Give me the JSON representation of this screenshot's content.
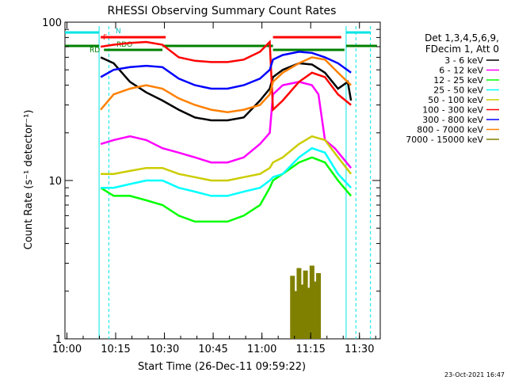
{
  "chart_data": {
    "type": "line",
    "title": "RHESSI Observing Summary Count Rates",
    "xlabel": "Start Time (26-Dec-11 09:59:22)",
    "ylabel": "Count Rate (s⁻¹ detector⁻¹)",
    "yscale": "log",
    "ylim": [
      1,
      100
    ],
    "xlim_minutes": [
      0,
      97
    ],
    "x_ticks": [
      "10:00",
      "10:15",
      "10:30",
      "10:45",
      "11:00",
      "11:15",
      "11:30"
    ],
    "y_ticks": [
      "1",
      "10",
      "100"
    ],
    "legend_header": [
      "Det 1,3,4,5,6,9,",
      "FDecim 1, Att 0"
    ],
    "legend_placement": "right",
    "footer": "23-Oct-2021 16:47",
    "flag_labels": {
      "n": "N",
      "f": "F",
      "rd": "RD",
      "rdo": "RDO"
    },
    "series": [
      {
        "name": "3 - 6 keV",
        "color": "#000000",
        "values": [
          [
            11,
            60
          ],
          [
            15,
            55
          ],
          [
            20,
            42
          ],
          [
            25,
            36
          ],
          [
            30,
            32
          ],
          [
            35,
            28
          ],
          [
            40,
            25
          ],
          [
            45,
            24
          ],
          [
            50,
            24
          ],
          [
            55,
            25
          ],
          [
            60,
            32
          ],
          [
            63,
            38
          ],
          [
            64,
            45
          ],
          [
            67,
            50
          ],
          [
            72,
            55
          ],
          [
            76,
            54
          ],
          [
            80,
            48
          ],
          [
            84,
            38
          ],
          [
            87,
            42
          ],
          [
            88,
            32
          ]
        ]
      },
      {
        "name": "6 - 12 keV",
        "color": "#ff00ff",
        "values": [
          [
            11,
            17
          ],
          [
            15,
            18
          ],
          [
            20,
            19
          ],
          [
            25,
            18
          ],
          [
            30,
            16
          ],
          [
            35,
            15
          ],
          [
            40,
            14
          ],
          [
            45,
            13
          ],
          [
            50,
            13
          ],
          [
            55,
            14
          ],
          [
            60,
            17
          ],
          [
            63,
            20
          ],
          [
            64,
            35
          ],
          [
            67,
            40
          ],
          [
            72,
            42
          ],
          [
            76,
            40
          ],
          [
            78,
            35
          ],
          [
            80,
            18
          ],
          [
            83,
            16
          ],
          [
            88,
            12
          ]
        ]
      },
      {
        "name": "12 - 25 keV",
        "color": "#00ff00",
        "values": [
          [
            11,
            9
          ],
          [
            15,
            8
          ],
          [
            20,
            8
          ],
          [
            25,
            7.5
          ],
          [
            30,
            7
          ],
          [
            35,
            6
          ],
          [
            40,
            5.5
          ],
          [
            45,
            5.5
          ],
          [
            50,
            5.5
          ],
          [
            55,
            6
          ],
          [
            60,
            7
          ],
          [
            63,
            9
          ],
          [
            64,
            10
          ],
          [
            67,
            11
          ],
          [
            72,
            13
          ],
          [
            76,
            14
          ],
          [
            80,
            13
          ],
          [
            84,
            10
          ],
          [
            88,
            8
          ]
        ]
      },
      {
        "name": "25 - 50 keV",
        "color": "#00ffff",
        "values": [
          [
            11,
            9
          ],
          [
            15,
            9
          ],
          [
            20,
            9.5
          ],
          [
            25,
            10
          ],
          [
            30,
            10
          ],
          [
            35,
            9
          ],
          [
            40,
            8.5
          ],
          [
            45,
            8
          ],
          [
            50,
            8
          ],
          [
            55,
            8.5
          ],
          [
            60,
            9
          ],
          [
            63,
            10
          ],
          [
            64,
            10.5
          ],
          [
            67,
            11
          ],
          [
            72,
            14
          ],
          [
            76,
            16
          ],
          [
            80,
            15
          ],
          [
            84,
            11
          ],
          [
            88,
            9
          ]
        ]
      },
      {
        "name": "50 - 100 keV",
        "color": "#cccc00",
        "values": [
          [
            11,
            11
          ],
          [
            15,
            11
          ],
          [
            20,
            11.5
          ],
          [
            25,
            12
          ],
          [
            30,
            12
          ],
          [
            35,
            11
          ],
          [
            40,
            10.5
          ],
          [
            45,
            10
          ],
          [
            50,
            10
          ],
          [
            55,
            10.5
          ],
          [
            60,
            11
          ],
          [
            63,
            12
          ],
          [
            64,
            13
          ],
          [
            67,
            14
          ],
          [
            72,
            17
          ],
          [
            76,
            19
          ],
          [
            80,
            18
          ],
          [
            84,
            14
          ],
          [
            88,
            11
          ]
        ]
      },
      {
        "name": "100 - 300 keV",
        "color": "#ff0000",
        "values": [
          [
            11,
            70
          ],
          [
            15,
            72
          ],
          [
            20,
            74
          ],
          [
            25,
            75
          ],
          [
            30,
            72
          ],
          [
            35,
            60
          ],
          [
            40,
            57
          ],
          [
            45,
            56
          ],
          [
            50,
            56
          ],
          [
            55,
            58
          ],
          [
            60,
            65
          ],
          [
            63,
            75
          ],
          [
            64,
            28
          ],
          [
            67,
            32
          ],
          [
            72,
            42
          ],
          [
            76,
            48
          ],
          [
            80,
            45
          ],
          [
            84,
            35
          ],
          [
            88,
            30
          ]
        ]
      },
      {
        "name": "300 - 800 keV",
        "color": "#0000ff",
        "values": [
          [
            11,
            45
          ],
          [
            15,
            50
          ],
          [
            20,
            52
          ],
          [
            25,
            53
          ],
          [
            30,
            52
          ],
          [
            35,
            44
          ],
          [
            40,
            40
          ],
          [
            45,
            38
          ],
          [
            50,
            38
          ],
          [
            55,
            40
          ],
          [
            60,
            44
          ],
          [
            63,
            50
          ],
          [
            64,
            58
          ],
          [
            67,
            62
          ],
          [
            72,
            65
          ],
          [
            76,
            64
          ],
          [
            80,
            60
          ],
          [
            84,
            55
          ],
          [
            88,
            48
          ]
        ]
      },
      {
        "name": "800 - 7000 keV",
        "color": "#ff8000",
        "values": [
          [
            11,
            28
          ],
          [
            15,
            35
          ],
          [
            20,
            38
          ],
          [
            25,
            40
          ],
          [
            30,
            38
          ],
          [
            35,
            33
          ],
          [
            40,
            30
          ],
          [
            45,
            28
          ],
          [
            50,
            27
          ],
          [
            55,
            28
          ],
          [
            60,
            30
          ],
          [
            63,
            35
          ],
          [
            64,
            42
          ],
          [
            67,
            48
          ],
          [
            72,
            55
          ],
          [
            76,
            60
          ],
          [
            80,
            58
          ],
          [
            84,
            48
          ],
          [
            88,
            40
          ]
        ]
      },
      {
        "name": "7000 - 15000 keV",
        "color": "#808000",
        "values": [
          [
            70,
            2.5
          ],
          [
            71,
            2.0
          ],
          [
            72,
            2.8
          ],
          [
            73,
            2.2
          ],
          [
            74,
            2.7
          ],
          [
            75,
            2.1
          ],
          [
            76,
            2.9
          ],
          [
            77,
            2.3
          ],
          [
            78,
            2.6
          ]
        ]
      }
    ]
  }
}
